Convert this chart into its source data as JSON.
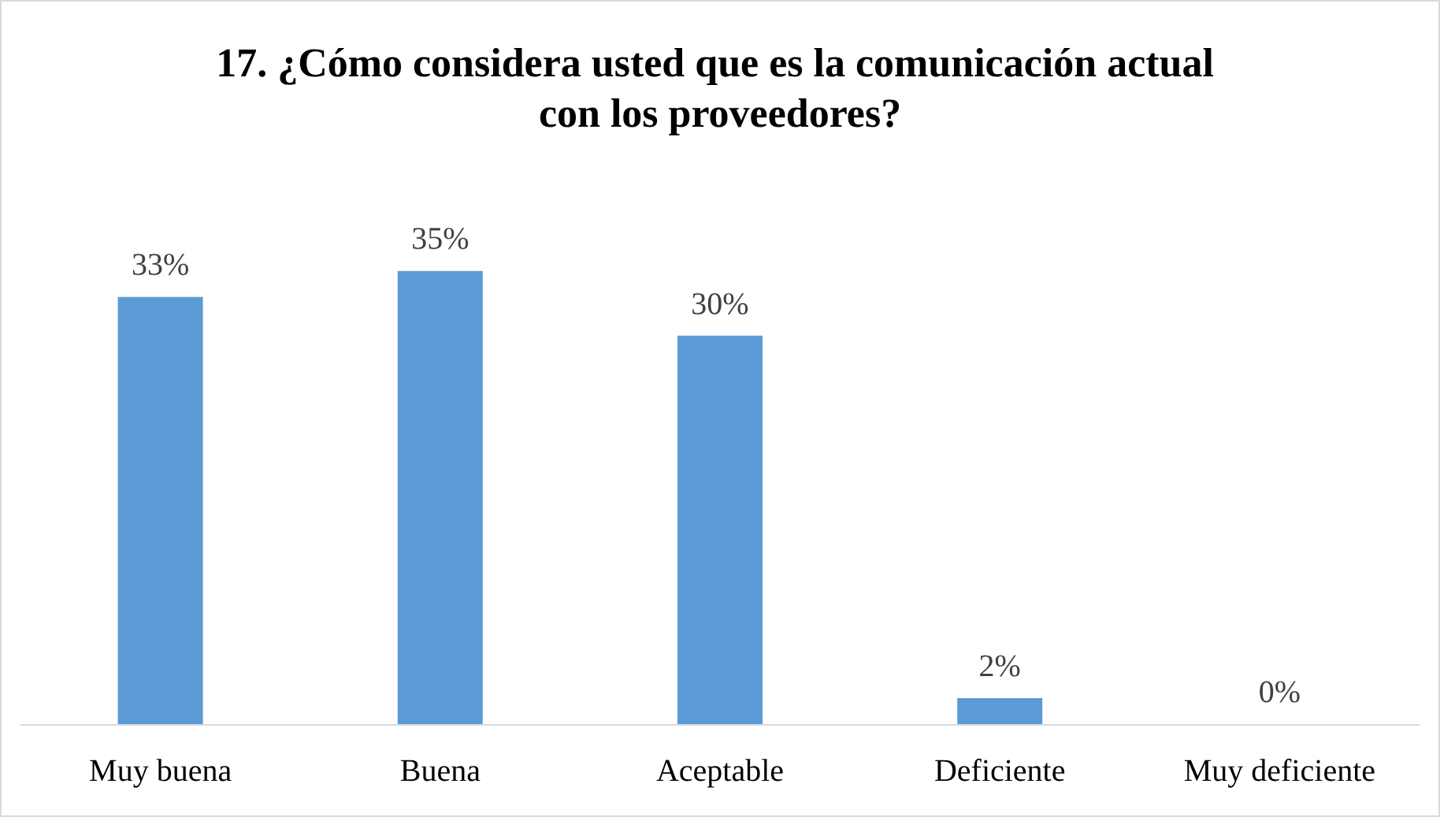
{
  "chart_data": {
    "type": "bar",
    "title": "17. ¿Cómo considera usted que es la comunicación actual con los proveedores?",
    "categories": [
      "Muy buena",
      "Buena",
      "Aceptable",
      "Deficiente",
      "Muy deficiente"
    ],
    "values": [
      33,
      35,
      30,
      2,
      0
    ],
    "color": "#5b9bd5",
    "value_labels": [
      "33%",
      "35%",
      "30%",
      "2%",
      "0%"
    ],
    "orientation": "vertical"
  }
}
